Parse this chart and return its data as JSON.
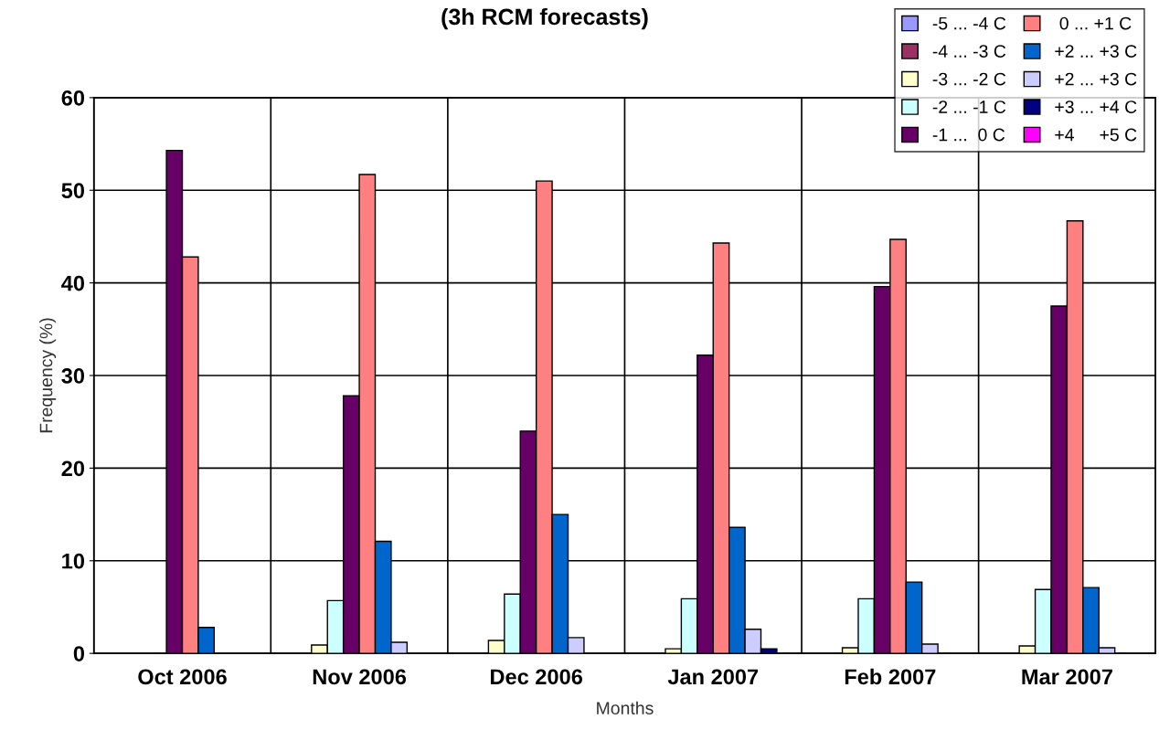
{
  "chart_data": {
    "type": "bar",
    "title": "(3h RCM forecasts)",
    "xlabel": "Months",
    "ylabel": "Frequency (%)",
    "categories": [
      "Oct 2006",
      "Nov 2006",
      "Dec 2006",
      "Jan 2007",
      "Feb 2007",
      "Mar 2007"
    ],
    "series": [
      {
        "name": "-5 ... -4 C",
        "color": "#9999ff",
        "values": [
          null,
          null,
          null,
          null,
          null,
          null
        ]
      },
      {
        "name": "-4 ... -3 C",
        "color": "#993366",
        "values": [
          null,
          null,
          null,
          null,
          null,
          null
        ]
      },
      {
        "name": "-3 ... -2 C",
        "color": "#ffffcc",
        "values": [
          null,
          0.9,
          1.4,
          0.5,
          0.6,
          0.8
        ]
      },
      {
        "name": "-2 ... -1 C",
        "color": "#ccffff",
        "values": [
          null,
          5.7,
          6.4,
          5.9,
          5.9,
          6.9
        ]
      },
      {
        "name": "-1 ...  0 C",
        "color": "#660066",
        "values": [
          54.3,
          27.8,
          24.0,
          32.2,
          39.6,
          37.5
        ]
      },
      {
        "name": " 0 ... +1 C",
        "color": "#ff8080",
        "values": [
          42.8,
          51.7,
          51.0,
          44.3,
          44.7,
          46.7
        ]
      },
      {
        "name": "+2 ... +3 C",
        "color": "#0066cc",
        "values": [
          2.8,
          12.1,
          15.0,
          13.6,
          7.7,
          7.1
        ]
      },
      {
        "name": "+2 ... +3 C",
        "color": "#ccccff",
        "values": [
          null,
          1.2,
          1.7,
          2.6,
          1.0,
          0.6
        ]
      },
      {
        "name": "+3 ... +4 C",
        "color": "#000080",
        "values": [
          null,
          null,
          null,
          0.5,
          null,
          null
        ]
      },
      {
        "name": "+4     +5 C",
        "color": "#ff00ff",
        "values": [
          null,
          null,
          null,
          null,
          null,
          null
        ]
      }
    ],
    "ylim": [
      0,
      60
    ],
    "yticks": [
      0,
      10,
      20,
      30,
      40,
      50,
      60
    ],
    "grid": true,
    "legend": "top right"
  }
}
